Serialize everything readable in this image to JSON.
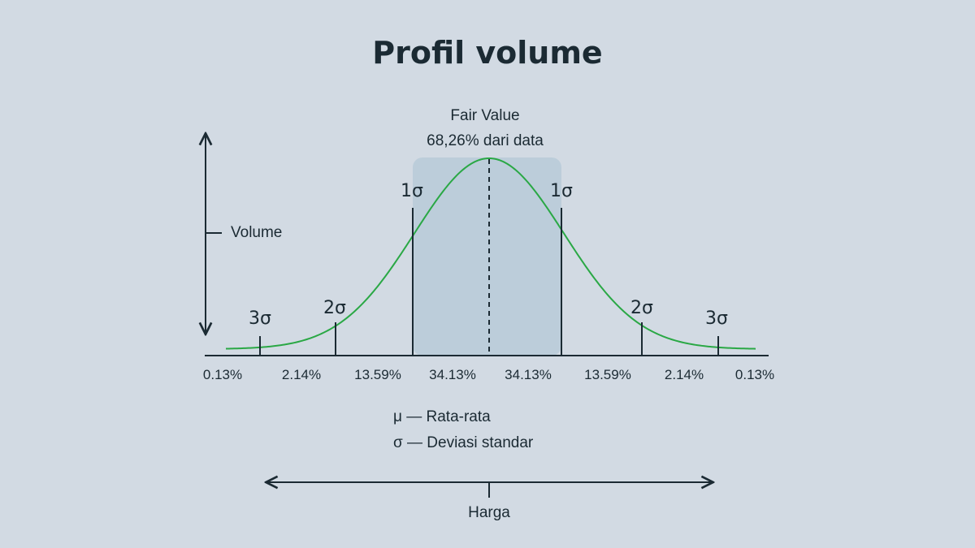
{
  "title": "Profil volume",
  "fair_value": {
    "label": "Fair Value",
    "subtitle": "68,26% dari data"
  },
  "y_axis_label": "Volume",
  "x_axis_label": "Harga",
  "legend": {
    "mu": "μ — Rata-rata",
    "sigma": "σ — Deviasi standar"
  },
  "sigma_markers": {
    "left_3": "3σ",
    "left_2": "2σ",
    "left_1": "1σ",
    "right_1": "1σ",
    "right_2": "2σ",
    "right_3": "3σ"
  },
  "segment_percentages": [
    "0.13%",
    "2.14%",
    "13.59%",
    "34.13%",
    "34.13%",
    "13.59%",
    "2.14%",
    "0.13%"
  ],
  "colors": {
    "background": "#d2dae3",
    "curve": "#2aa845",
    "highlight_band": "#bccdda",
    "ink": "#1b2a33"
  }
}
